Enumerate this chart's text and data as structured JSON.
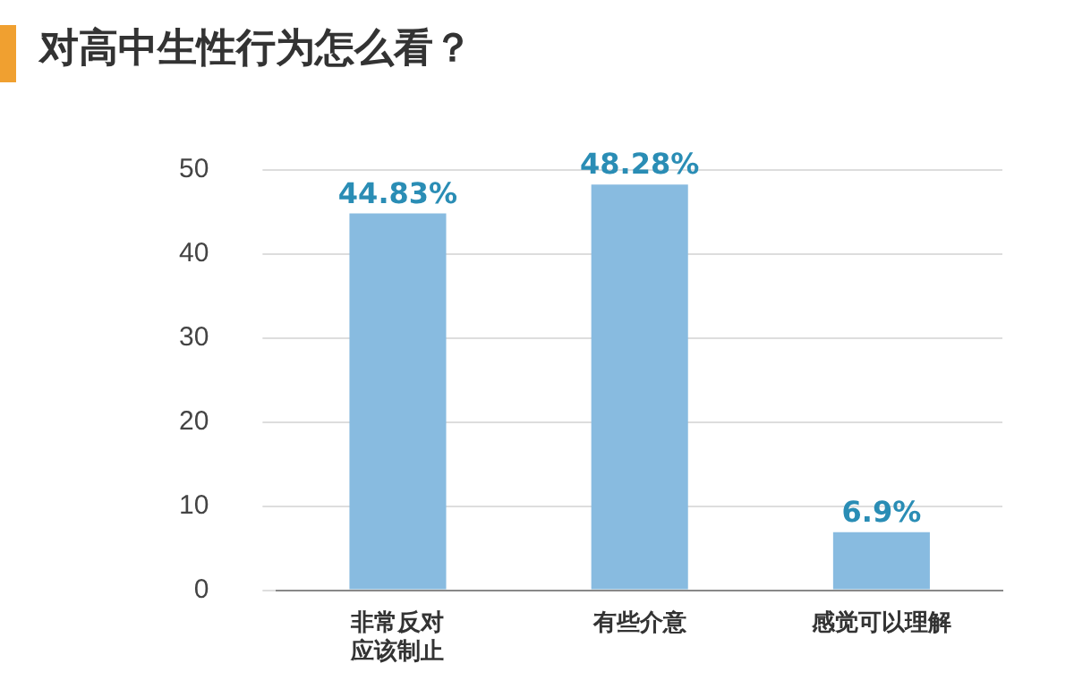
{
  "chart_data": {
    "type": "bar",
    "title": "对高中生性行为怎么看？",
    "categories": [
      "非常反对应该制止",
      "有些介意",
      "感觉可以理解"
    ],
    "values": [
      44.83,
      48.28,
      6.9
    ],
    "value_labels": [
      "44.83%",
      "48.28%",
      "6.9%"
    ],
    "color": "#88bbe0",
    "ylim": [
      0,
      50
    ],
    "yticks": [
      0,
      10,
      20,
      30,
      40,
      50
    ],
    "grid": "y",
    "legend": false
  }
}
